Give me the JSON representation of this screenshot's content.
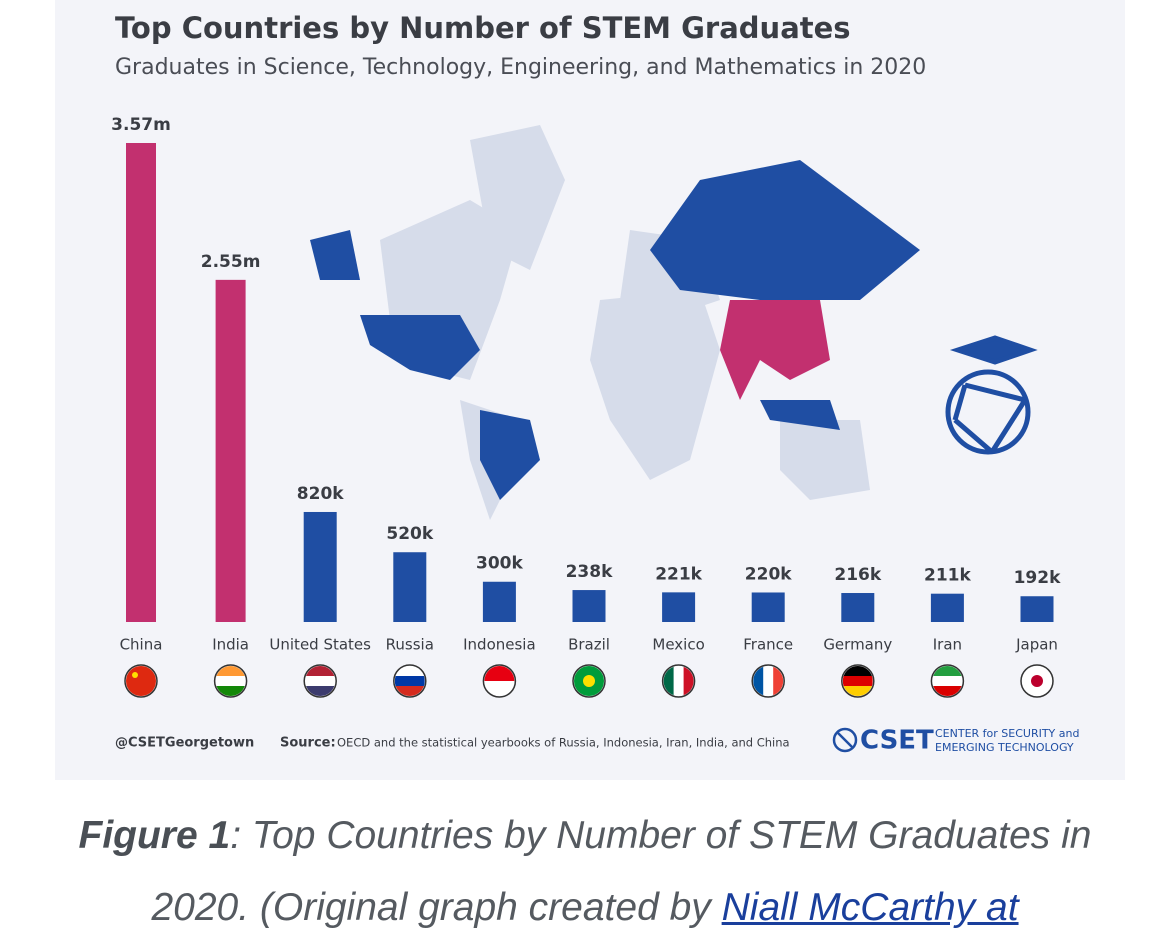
{
  "chart_data": {
    "type": "bar",
    "title": "Top Countries by Number of STEM Graduates",
    "subtitle": "Graduates in Science, Technology, Engineering, and Mathematics in 2020",
    "categories": [
      "China",
      "India",
      "United States",
      "Russia",
      "Indonesia",
      "Brazil",
      "Mexico",
      "France",
      "Germany",
      "Iran",
      "Japan"
    ],
    "values": [
      3570000,
      2550000,
      820000,
      520000,
      300000,
      238000,
      221000,
      220000,
      216000,
      211000,
      192000
    ],
    "value_labels": [
      "3.57m",
      "2.55m",
      "820k",
      "520k",
      "300k",
      "238k",
      "221k",
      "220k",
      "216k",
      "211k",
      "192k"
    ],
    "colors": [
      "#c2306f",
      "#c2306f",
      "#1f4ea3",
      "#1f4ea3",
      "#1f4ea3",
      "#1f4ea3",
      "#1f4ea3",
      "#1f4ea3",
      "#1f4ea3",
      "#1f4ea3",
      "#1f4ea3"
    ]
  },
  "footer": {
    "handle": "@CSETGeorgetown",
    "source_label": "Source:",
    "source_text": "OECD and the statistical yearbooks of Russia, Indonesia, Iran, India, and China",
    "logo": "CSET",
    "tagline_1": "CENTER for SECURITY and",
    "tagline_2": "EMERGING TECHNOLOGY"
  },
  "caption": {
    "figure": "Figure 1",
    "text": ": Top Countries by Number of STEM Graduates in 2020. (Original graph created by ",
    "link": "Niall McCarthy at"
  }
}
